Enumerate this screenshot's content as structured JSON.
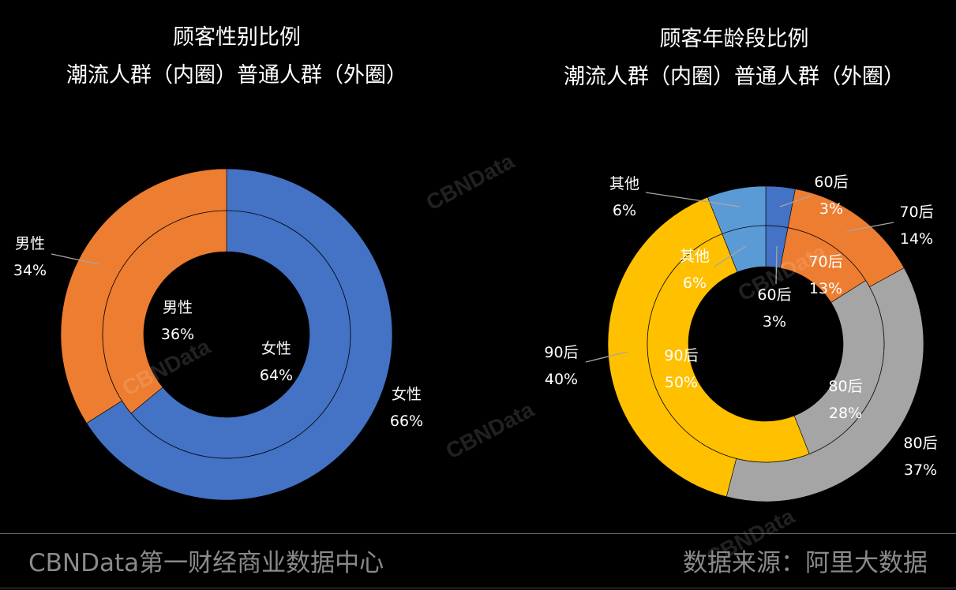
{
  "chart_data": [
    {
      "type": "pie",
      "variant": "nested-donut",
      "title_line1": "顾客性别比例",
      "title_line2": "潮流人群（内圈）普通人群（外圈）",
      "series": [
        {
          "name": "潮流人群（内圈）",
          "ring": "inner",
          "slices": [
            {
              "label": "女性",
              "value": 64,
              "display": "64%",
              "color": "#4472C4"
            },
            {
              "label": "男性",
              "value": 36,
              "display": "36%",
              "color": "#ED7D31"
            }
          ]
        },
        {
          "name": "普通人群（外圈）",
          "ring": "outer",
          "slices": [
            {
              "label": "女性",
              "value": 66,
              "display": "66%",
              "color": "#4472C4"
            },
            {
              "label": "男性",
              "value": 34,
              "display": "34%",
              "color": "#ED7D31"
            }
          ]
        }
      ]
    },
    {
      "type": "pie",
      "variant": "nested-donut",
      "title_line1": "顾客年龄段比例",
      "title_line2": "潮流人群（内圈）普通人群（外圈）",
      "series": [
        {
          "name": "潮流人群（内圈）",
          "ring": "inner",
          "slices": [
            {
              "label": "60后",
              "value": 3,
              "display": "3%",
              "color": "#4472C4"
            },
            {
              "label": "70后",
              "value": 13,
              "display": "13%",
              "color": "#ED7D31"
            },
            {
              "label": "80后",
              "value": 28,
              "display": "28%",
              "color": "#A5A5A5"
            },
            {
              "label": "90后",
              "value": 50,
              "display": "50%",
              "color": "#FFC000"
            },
            {
              "label": "其他",
              "value": 6,
              "display": "6%",
              "color": "#5B9BD5"
            }
          ]
        },
        {
          "name": "普通人群（外圈）",
          "ring": "outer",
          "slices": [
            {
              "label": "60后",
              "value": 3,
              "display": "3%",
              "color": "#4472C4"
            },
            {
              "label": "70后",
              "value": 14,
              "display": "14%",
              "color": "#ED7D31"
            },
            {
              "label": "80后",
              "value": 37,
              "display": "37%",
              "color": "#A5A5A5"
            },
            {
              "label": "90后",
              "value": 40,
              "display": "40%",
              "color": "#FFC000"
            },
            {
              "label": "其他",
              "value": 6,
              "display": "6%",
              "color": "#5B9BD5"
            }
          ]
        }
      ]
    }
  ],
  "footer": {
    "left": "CBNData第一财经商业数据中心",
    "right": "数据来源：阿里大数据"
  },
  "watermark": "CBNData"
}
